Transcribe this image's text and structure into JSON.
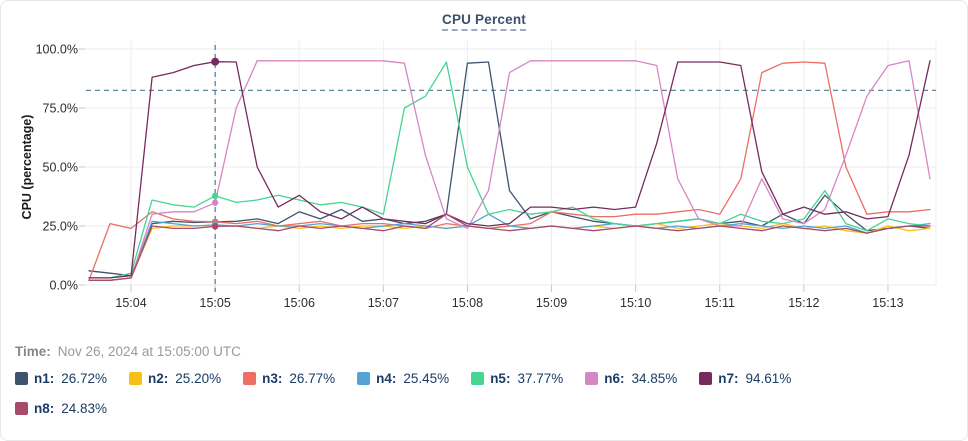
{
  "card": {
    "title": "CPU Percent"
  },
  "time_row": {
    "label": "Time:",
    "value": "Nov 26, 2024 at 15:05:00 UTC"
  },
  "legend": [
    {
      "name": "n1",
      "label": "n1:",
      "value_text": "26.72%",
      "value": 26.72,
      "color": "#3f536e"
    },
    {
      "name": "n2",
      "label": "n2:",
      "value_text": "25.20%",
      "value": 25.2,
      "color": "#f6c117"
    },
    {
      "name": "n3",
      "label": "n3:",
      "value_text": "26.77%",
      "value": 26.77,
      "color": "#ec6e64"
    },
    {
      "name": "n4",
      "label": "n4:",
      "value_text": "25.45%",
      "value": 25.45,
      "color": "#55a2d7"
    },
    {
      "name": "n5",
      "label": "n5:",
      "value_text": "37.77%",
      "value": 37.77,
      "color": "#45d591"
    },
    {
      "name": "n6",
      "label": "n6:",
      "value_text": "34.85%",
      "value": 34.85,
      "color": "#d786c5"
    },
    {
      "name": "n7",
      "label": "n7:",
      "value_text": "94.61%",
      "value": 94.61,
      "color": "#762b5c"
    },
    {
      "name": "n8",
      "label": "n8:",
      "value_text": "24.83%",
      "value": 24.83,
      "color": "#a84a68"
    }
  ],
  "chart_data": {
    "type": "line",
    "title": "CPU Percent",
    "ylabel": "CPU (percentage)",
    "ylim": [
      0,
      100
    ],
    "grid": true,
    "legend_position": "bottom",
    "yticks": [
      {
        "label": "0.0%",
        "value": 0
      },
      {
        "label": "25.0%",
        "value": 25
      },
      {
        "label": "50.0%",
        "value": 50
      },
      {
        "label": "75.0%",
        "value": 75
      },
      {
        "label": "100.0%",
        "value": 100
      }
    ],
    "xticks": [
      "15:04",
      "15:05",
      "15:06",
      "15:07",
      "15:08",
      "15:09",
      "15:10",
      "15:11",
      "15:12",
      "15:13"
    ],
    "x_times": [
      "15:03:30",
      "15:03:45",
      "15:04:00",
      "15:04:15",
      "15:04:30",
      "15:04:45",
      "15:05:00",
      "15:05:15",
      "15:05:30",
      "15:05:45",
      "15:06:00",
      "15:06:15",
      "15:06:30",
      "15:06:45",
      "15:07:00",
      "15:07:15",
      "15:07:30",
      "15:07:45",
      "15:08:00",
      "15:08:15",
      "15:08:30",
      "15:08:45",
      "15:09:00",
      "15:09:15",
      "15:09:30",
      "15:09:45",
      "15:10:00",
      "15:10:15",
      "15:10:30",
      "15:10:45",
      "15:11:00",
      "15:11:15",
      "15:11:30",
      "15:11:45",
      "15:12:00",
      "15:12:15",
      "15:12:30",
      "15:12:45",
      "15:13:00",
      "15:13:15",
      "15:13:30"
    ],
    "threshold_line": {
      "value": 82.5,
      "style": "dashed"
    },
    "crosshair": {
      "time": "15:05:00",
      "x_index": 6,
      "style": "dashed"
    },
    "series": [
      {
        "name": "n1",
        "color": "#3f536e",
        "values": [
          6,
          5,
          4,
          26,
          27,
          26.5,
          26.72,
          27,
          28,
          26,
          31,
          28,
          32,
          27,
          28,
          26,
          27,
          30,
          94,
          94.5,
          40,
          28,
          31,
          29,
          27,
          26,
          25,
          26,
          27,
          28,
          26,
          27,
          25,
          30,
          26,
          38,
          30,
          23,
          24,
          25,
          24
        ]
      },
      {
        "name": "n2",
        "color": "#f6c117",
        "values": [
          2,
          2,
          3,
          24,
          25,
          25,
          25.2,
          25,
          24,
          25,
          24,
          25,
          24,
          25,
          25,
          24,
          25,
          24,
          25,
          24,
          25,
          24,
          25,
          24,
          25,
          24,
          25,
          26,
          24,
          25,
          26,
          25,
          24,
          26,
          24,
          25,
          23,
          22,
          25,
          23,
          24
        ]
      },
      {
        "name": "n3",
        "color": "#ec6e64",
        "values": [
          2,
          26,
          24,
          31,
          28,
          27,
          26.77,
          26,
          27,
          25,
          26,
          27,
          25,
          26,
          26,
          25,
          24,
          26,
          25,
          24,
          25,
          26,
          31,
          30,
          29,
          29,
          30,
          30,
          31,
          32,
          30,
          45,
          90,
          94,
          94.5,
          94,
          50,
          30,
          31,
          31,
          32
        ]
      },
      {
        "name": "n4",
        "color": "#55a2d7",
        "values": [
          2,
          2,
          3,
          27,
          26,
          25,
          25.45,
          25,
          26,
          25,
          25,
          26,
          25,
          24,
          25,
          26,
          25,
          24,
          25,
          30,
          25,
          24,
          25,
          24,
          25,
          26,
          25,
          24,
          25,
          24,
          25,
          26,
          25,
          24,
          25,
          24,
          25,
          22,
          24,
          25,
          26
        ]
      },
      {
        "name": "n5",
        "color": "#45d591",
        "values": [
          3,
          3,
          5,
          36,
          34,
          33,
          37.77,
          35,
          36,
          38,
          36,
          34,
          35,
          33,
          30,
          75,
          80,
          94.5,
          50,
          30,
          32,
          30,
          31,
          33,
          28,
          26,
          25,
          26,
          27,
          28,
          26,
          30,
          27,
          26,
          28,
          40,
          26,
          23,
          28,
          26,
          25
        ]
      },
      {
        "name": "n6",
        "color": "#d786c5",
        "values": [
          2,
          2,
          3,
          30,
          31,
          31,
          34.85,
          75,
          95,
          95,
          95,
          95,
          95,
          95,
          95,
          94,
          55,
          28,
          24,
          40,
          90,
          95,
          95,
          95,
          95,
          95,
          95,
          93,
          45,
          28,
          25,
          25,
          45,
          28,
          26,
          32,
          55,
          80,
          93,
          95,
          45
        ]
      },
      {
        "name": "n7",
        "color": "#762b5c",
        "values": [
          3,
          3,
          4,
          88,
          90,
          93,
          94.6,
          94.5,
          50,
          33,
          38,
          31,
          28,
          33,
          28,
          27,
          26,
          30,
          26,
          25,
          26,
          33,
          33,
          32,
          33,
          32,
          33,
          60,
          94.5,
          94.5,
          94.5,
          93,
          48,
          30,
          33,
          30,
          31,
          28,
          29,
          55,
          95
        ]
      },
      {
        "name": "n8",
        "color": "#a84a68",
        "values": [
          2,
          2,
          3,
          25,
          24,
          24,
          24.83,
          25,
          24,
          23,
          25,
          24,
          25,
          24,
          23,
          25,
          24,
          30,
          25,
          24,
          23,
          24,
          25,
          24,
          23,
          24,
          25,
          24,
          23,
          24,
          25,
          24,
          23,
          25,
          24,
          23,
          24,
          22,
          24,
          25,
          25
        ]
      }
    ]
  }
}
